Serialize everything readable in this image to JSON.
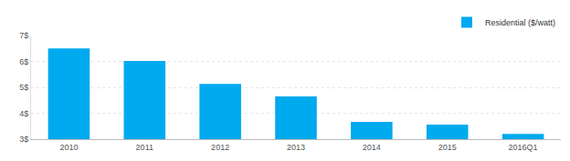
{
  "chart_data": {
    "type": "bar",
    "categories": [
      "2010",
      "2011",
      "2012",
      "2013",
      "2014",
      "2015",
      "2016Q1"
    ],
    "series": [
      {
        "name": "Residential ($/watt)",
        "color": "#00aaee",
        "values": [
          6.5,
          6.02,
          5.13,
          4.65,
          3.67,
          3.56,
          3.2
        ]
      }
    ],
    "ylim": [
      3,
      7
    ],
    "yticks": [
      {
        "value": 3,
        "label": "3$"
      },
      {
        "value": 4,
        "label": "4$"
      },
      {
        "value": 5,
        "label": "5$"
      },
      {
        "value": 6,
        "label": "6$"
      },
      {
        "value": 7,
        "label": "7$"
      }
    ],
    "grid": true,
    "legend": "top-right"
  }
}
